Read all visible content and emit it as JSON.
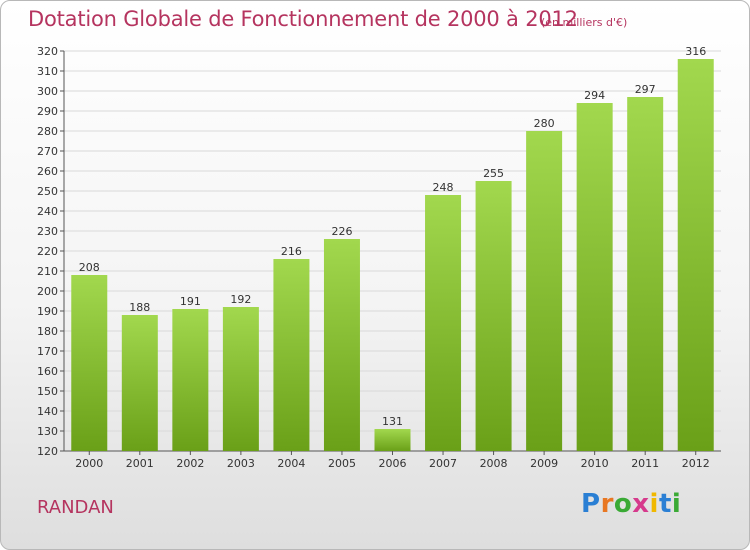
{
  "title": "Dotation Globale de Fonctionnement de 2000 à 2012",
  "subtitle": "(en milliers d'€)",
  "commune": "RANDAN",
  "logo": {
    "letters": [
      "P",
      "r",
      "o",
      "x",
      "i",
      "t",
      "i"
    ],
    "colors": [
      "#2a7fd4",
      "#e87722",
      "#3aaa35",
      "#d63a8c",
      "#f0b800",
      "#2a7fd4",
      "#3aaa35"
    ]
  },
  "colors": {
    "title": "#b5345f",
    "bar_light": "#a2d84e",
    "bar_dark": "#6aa018",
    "grid": "#d9d9d9"
  },
  "chart_data": {
    "type": "bar",
    "title": "Dotation Globale de Fonctionnement de 2000 à 2012",
    "subtitle": "(en milliers d'€)",
    "categories": [
      "2000",
      "2001",
      "2002",
      "2003",
      "2004",
      "2005",
      "2006",
      "2007",
      "2008",
      "2009",
      "2010",
      "2011",
      "2012"
    ],
    "values": [
      208,
      188,
      191,
      192,
      216,
      226,
      131,
      248,
      255,
      280,
      294,
      297,
      316
    ],
    "ylim": [
      120,
      320
    ],
    "ytick_step": 10,
    "grid": true,
    "xlabel": "",
    "ylabel": ""
  }
}
